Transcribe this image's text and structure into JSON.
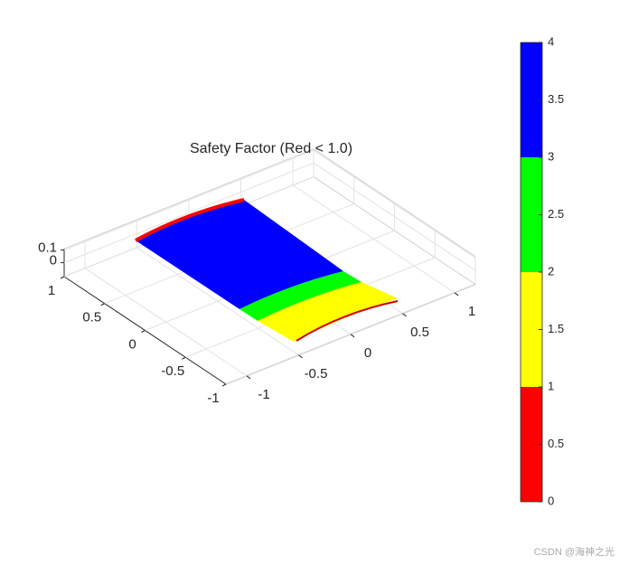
{
  "chart_data": {
    "type": "surface",
    "title": "Safety Factor (Red < 1.0)",
    "xlim": [
      -1.2,
      1.2
    ],
    "xticks": [
      -1,
      -0.5,
      0,
      0.5,
      1
    ],
    "ylim": [
      -1,
      1
    ],
    "yticks": [
      -1,
      -0.5,
      0,
      0.5,
      1
    ],
    "zlim": [
      -0.11,
      0.11
    ],
    "zticks": [
      0,
      0.1
    ],
    "grid": true,
    "colorbar": {
      "lim": [
        0,
        4
      ],
      "ticks": [
        0,
        0.5,
        1,
        1.5,
        2,
        2.5,
        3,
        3.5,
        4
      ],
      "bands": [
        {
          "from": 0,
          "to": 1,
          "color": "#ff0000"
        },
        {
          "from": 1,
          "to": 2,
          "color": "#ffff00"
        },
        {
          "from": 2,
          "to": 3,
          "color": "#00ff00"
        },
        {
          "from": 3,
          "to": 4,
          "color": "#0000ff"
        }
      ]
    },
    "watermark": "CSDN @海神之光"
  }
}
